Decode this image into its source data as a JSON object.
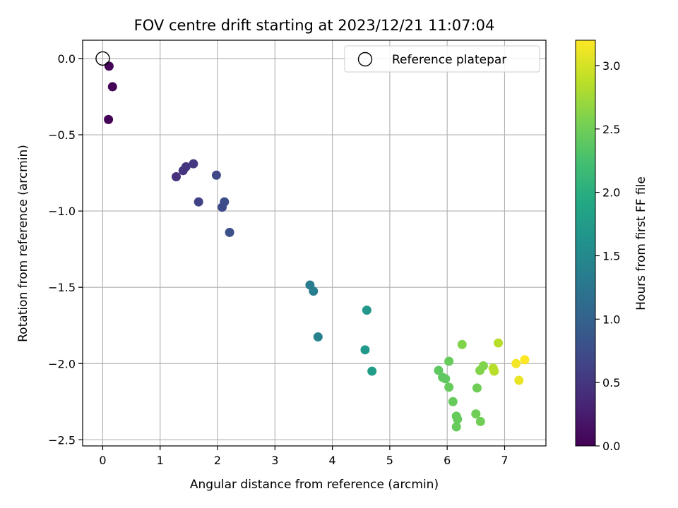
{
  "chart_data": {
    "type": "scatter",
    "title": "FOV centre drift starting at 2023/12/21 11:07:04",
    "xlabel": "Angular distance from reference (arcmin)",
    "ylabel": "Rotation from reference (arcmin)",
    "xlim": [
      -0.35,
      7.72
    ],
    "ylim": [
      -2.54,
      0.12
    ],
    "xticks": [
      0,
      1,
      2,
      3,
      4,
      5,
      6,
      7
    ],
    "xtick_labels": [
      "0",
      "1",
      "2",
      "3",
      "4",
      "5",
      "6",
      "7"
    ],
    "yticks": [
      0.0,
      -0.5,
      -1.0,
      -1.5,
      -2.0,
      -2.5
    ],
    "ytick_labels": [
      "0.0",
      "−0.5",
      "−1.0",
      "−1.5",
      "−2.0",
      "−2.5"
    ],
    "grid": true,
    "legend": {
      "position": "top-right",
      "entries": [
        "Reference platepar"
      ]
    },
    "reference_point": {
      "x": 0.0,
      "y": 0.0
    },
    "colorbar": {
      "label": "Hours from first FF file",
      "colormap": "viridis",
      "range": [
        0.0,
        3.2
      ],
      "ticks": [
        0.0,
        0.5,
        1.0,
        1.5,
        2.0,
        2.5,
        3.0
      ],
      "tick_labels": [
        "0.0",
        "0.5",
        "1.0",
        "1.5",
        "2.0",
        "2.5",
        "3.0"
      ]
    },
    "points": [
      {
        "x": 0.11,
        "y": -0.05,
        "h": 0.05
      },
      {
        "x": 0.17,
        "y": -0.185,
        "h": 0.02
      },
      {
        "x": 0.1,
        "y": -0.4,
        "h": 0.02
      },
      {
        "x": 1.28,
        "y": -0.775,
        "h": 0.45
      },
      {
        "x": 1.4,
        "y": -0.735,
        "h": 0.48
      },
      {
        "x": 1.45,
        "y": -0.71,
        "h": 0.48
      },
      {
        "x": 1.58,
        "y": -0.69,
        "h": 0.52
      },
      {
        "x": 1.67,
        "y": -0.94,
        "h": 0.62
      },
      {
        "x": 1.98,
        "y": -0.765,
        "h": 0.7
      },
      {
        "x": 2.12,
        "y": -0.94,
        "h": 0.75
      },
      {
        "x": 2.08,
        "y": -0.975,
        "h": 0.72
      },
      {
        "x": 2.21,
        "y": -1.14,
        "h": 0.78
      },
      {
        "x": 3.61,
        "y": -1.485,
        "h": 1.35
      },
      {
        "x": 3.67,
        "y": -1.525,
        "h": 1.35
      },
      {
        "x": 3.75,
        "y": -1.825,
        "h": 1.4
      },
      {
        "x": 4.6,
        "y": -1.65,
        "h": 1.7
      },
      {
        "x": 4.57,
        "y": -1.91,
        "h": 1.7
      },
      {
        "x": 4.69,
        "y": -2.05,
        "h": 1.75
      },
      {
        "x": 5.85,
        "y": -2.045,
        "h": 2.4
      },
      {
        "x": 5.92,
        "y": -2.09,
        "h": 2.4
      },
      {
        "x": 5.97,
        "y": -2.1,
        "h": 2.4
      },
      {
        "x": 6.03,
        "y": -1.985,
        "h": 2.45
      },
      {
        "x": 6.03,
        "y": -2.155,
        "h": 2.45
      },
      {
        "x": 6.1,
        "y": -2.25,
        "h": 2.45
      },
      {
        "x": 6.16,
        "y": -2.345,
        "h": 2.45
      },
      {
        "x": 6.18,
        "y": -2.365,
        "h": 2.45
      },
      {
        "x": 6.16,
        "y": -2.415,
        "h": 2.45
      },
      {
        "x": 6.26,
        "y": -1.875,
        "h": 2.6
      },
      {
        "x": 6.5,
        "y": -2.33,
        "h": 2.5
      },
      {
        "x": 6.58,
        "y": -2.38,
        "h": 2.5
      },
      {
        "x": 6.52,
        "y": -2.16,
        "h": 2.5
      },
      {
        "x": 6.57,
        "y": -2.045,
        "h": 2.6
      },
      {
        "x": 6.63,
        "y": -2.015,
        "h": 2.6
      },
      {
        "x": 6.8,
        "y": -2.03,
        "h": 2.85
      },
      {
        "x": 6.82,
        "y": -2.05,
        "h": 2.85
      },
      {
        "x": 6.89,
        "y": -1.865,
        "h": 2.85
      },
      {
        "x": 7.2,
        "y": -2.0,
        "h": 3.15
      },
      {
        "x": 7.35,
        "y": -1.975,
        "h": 3.2
      },
      {
        "x": 7.25,
        "y": -2.11,
        "h": 3.1
      }
    ]
  }
}
